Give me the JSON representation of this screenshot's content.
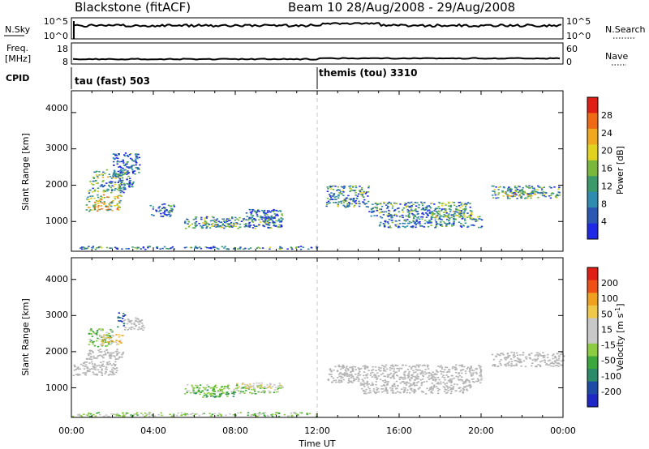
{
  "header": {
    "station": "Blackstone (fitACF)",
    "beam_date": "Beam 10  28/Aug/2008 - 29/Aug/2008"
  },
  "top_panels": {
    "nsky_label": "N.Sky",
    "nsky_ticks": [
      "10^5",
      "10^0"
    ],
    "nsearch_label": "N.Search",
    "nsearch_ticks": [
      "10^5",
      "10^0"
    ],
    "freq_label": "Freq.",
    "freq_unit": "[MHz]",
    "freq_ticks": [
      "18",
      "8"
    ],
    "nave_label": "Nave",
    "nave_ticks": [
      "60",
      "0"
    ],
    "cpid_label": "CPID",
    "cpid_segments": [
      "tau (fast) 503",
      "themis (tou) 3310"
    ]
  },
  "colors": {
    "background": "#ffffff",
    "dashed_line": "#c8c8c8",
    "ground_scatter": "#b4b4b4"
  },
  "chart_data": [
    {
      "type": "heatmap",
      "name": "power",
      "xlabel": "",
      "ylabel": "Slant Range [km]",
      "x_ticks": [
        "00:00",
        "04:00",
        "08:00",
        "12:00",
        "16:00",
        "20:00",
        "00:00"
      ],
      "y_ticks": [
        "4000",
        "3000",
        "2000",
        "1000"
      ],
      "xlim": [
        0,
        24
      ],
      "ylim": [
        180,
        4600
      ],
      "colorbar": {
        "label": "Power [dB]",
        "ticks": [
          "28",
          "24",
          "20",
          "16",
          "12",
          "8",
          "4"
        ],
        "range": [
          0,
          32
        ],
        "colors": [
          "#1e28e6",
          "#2a56b4",
          "#2e8cb0",
          "#3a9a6a",
          "#7ab83c",
          "#e0d21e",
          "#f0a81e",
          "#f06a14",
          "#e01e14"
        ]
      },
      "regions": [
        {
          "t": [
            0.7,
            2.4
          ],
          "r": [
            1300,
            1750
          ],
          "level": 18
        },
        {
          "t": [
            0.8,
            2.6
          ],
          "r": [
            1800,
            2150
          ],
          "level": 12
        },
        {
          "t": [
            1.0,
            2.6
          ],
          "r": [
            2200,
            2450
          ],
          "level": 14
        },
        {
          "t": [
            2.0,
            3.3
          ],
          "r": [
            2300,
            2900
          ],
          "level": 6
        },
        {
          "t": [
            2.3,
            3.0
          ],
          "r": [
            1900,
            2400
          ],
          "level": 6
        },
        {
          "t": [
            3.8,
            5.0
          ],
          "r": [
            1150,
            1500
          ],
          "level": 7
        },
        {
          "t": [
            5.5,
            10.3
          ],
          "r": [
            820,
            1150
          ],
          "level": 9
        },
        {
          "t": [
            6.3,
            8.2
          ],
          "r": [
            850,
            1000
          ],
          "level": 14
        },
        {
          "t": [
            8.5,
            10.3
          ],
          "r": [
            1000,
            1350
          ],
          "level": 6
        },
        {
          "t": [
            0.0,
            12.0
          ],
          "r": [
            250,
            330
          ],
          "level": 8
        },
        {
          "t": [
            12.4,
            14.5
          ],
          "r": [
            1400,
            2000
          ],
          "level": 9
        },
        {
          "t": [
            14.5,
            19.5
          ],
          "r": [
            1150,
            1550
          ],
          "level": 10
        },
        {
          "t": [
            15.0,
            20.0
          ],
          "r": [
            850,
            1150
          ],
          "level": 8
        },
        {
          "t": [
            17.5,
            19.5
          ],
          "r": [
            1100,
            1300
          ],
          "level": 13
        },
        {
          "t": [
            20.5,
            23.8
          ],
          "r": [
            1650,
            2000
          ],
          "level": 10
        },
        {
          "t": [
            21.0,
            23.0
          ],
          "r": [
            1700,
            1850
          ],
          "level": 17
        }
      ]
    },
    {
      "type": "heatmap",
      "name": "velocity",
      "xlabel": "Time UT",
      "ylabel": "Slant Range [km]",
      "x_ticks": [
        "00:00",
        "04:00",
        "08:00",
        "12:00",
        "16:00",
        "20:00",
        "00:00"
      ],
      "y_ticks": [
        "4000",
        "3000",
        "2000",
        "1000"
      ],
      "xlim": [
        0,
        24
      ],
      "ylim": [
        180,
        4600
      ],
      "colorbar": {
        "label": "Velocity [m s^-1]",
        "ticks": [
          "200",
          "100",
          "50",
          "15",
          "-15",
          "-50",
          "-100",
          "-200"
        ],
        "range": [
          -250,
          250
        ],
        "colors": [
          "#e01e14",
          "#f05014",
          "#f0a01e",
          "#f0c84a",
          "#c8c8c8",
          "#c8c8c8",
          "#8ccc40",
          "#3aa83a",
          "#2a8a6a",
          "#1e4aa8",
          "#1e28c8"
        ]
      },
      "regions": [
        {
          "t": [
            0.0,
            2.2
          ],
          "r": [
            1350,
            1750
          ],
          "level": 0,
          "ground": true
        },
        {
          "t": [
            0.6,
            2.5
          ],
          "r": [
            1800,
            2100
          ],
          "level": 0,
          "ground": true
        },
        {
          "t": [
            0.8,
            2.0
          ],
          "r": [
            2150,
            2650
          ],
          "level": -60
        },
        {
          "t": [
            1.4,
            2.5
          ],
          "r": [
            2200,
            2500
          ],
          "level": 80
        },
        {
          "t": [
            2.2,
            2.6
          ],
          "r": [
            2700,
            3100
          ],
          "level": -180
        },
        {
          "t": [
            2.5,
            3.5
          ],
          "r": [
            2600,
            2950
          ],
          "level": 0,
          "ground": true
        },
        {
          "t": [
            5.5,
            10.3
          ],
          "r": [
            850,
            1100
          ],
          "level": -40
        },
        {
          "t": [
            6.0,
            8.0
          ],
          "r": [
            750,
            950
          ],
          "level": -90
        },
        {
          "t": [
            8.0,
            10.3
          ],
          "r": [
            1000,
            1150
          ],
          "level": 60
        },
        {
          "t": [
            0.0,
            12.0
          ],
          "r": [
            220,
            330
          ],
          "level": -30
        },
        {
          "t": [
            12.5,
            20.0
          ],
          "r": [
            1150,
            1650
          ],
          "level": 0,
          "ground": true
        },
        {
          "t": [
            14.0,
            19.5
          ],
          "r": [
            850,
            1150
          ],
          "level": 0,
          "ground": true
        },
        {
          "t": [
            20.5,
            24.0
          ],
          "r": [
            1600,
            2000
          ],
          "level": 0,
          "ground": true
        }
      ]
    }
  ]
}
